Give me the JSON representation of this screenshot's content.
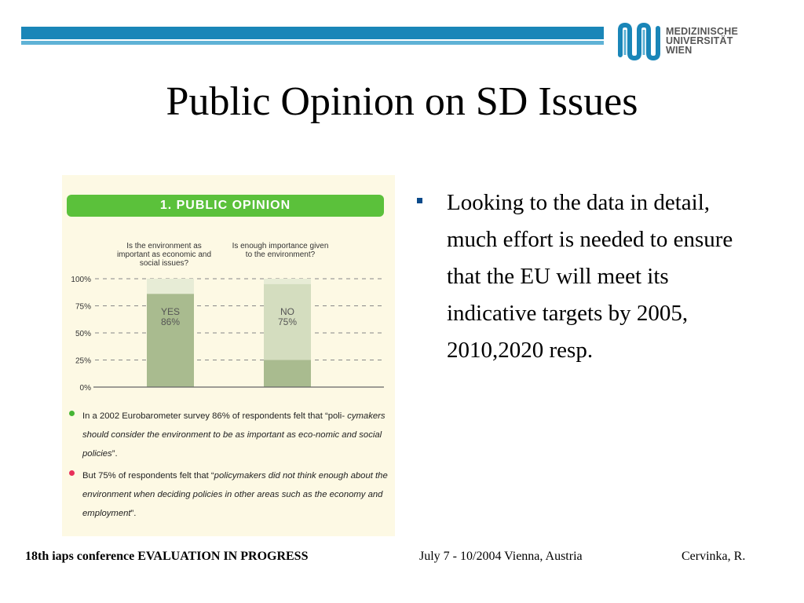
{
  "header": {
    "logo_lines": [
      "MEDIZINISCHE",
      "UNIVERSITÄT",
      "WIEN"
    ],
    "accent_color": "#1a86b8"
  },
  "slide": {
    "title": "Public Opinion on SD Issues"
  },
  "figure": {
    "heading": "1. PUBLIC OPINION",
    "question_1": "Is the environment as important as economic and social issues?",
    "question_2": "Is enough importance given to the environment?",
    "note_1": {
      "before_italic": "In a 2002 Eurobarometer survey 86% of respondents felt that “poli-",
      "italic": "cymakers should consider the environment to be as important as eco-nomic and social policies",
      "after_italic": "”."
    },
    "note_2": {
      "before_italic": "But 75% of respondents felt that “",
      "italic": "policymakers did not think enough about the environment when deciding policies in other areas such as the economy and employment",
      "after_italic": "”."
    },
    "chart_data": {
      "type": "bar",
      "categories": [
        "Is the environment as important as economic and social issues?",
        "Is enough importance given to the environment?"
      ],
      "values": [
        86,
        75
      ],
      "bar_labels": [
        [
          "YES",
          "86%"
        ],
        [
          "NO",
          "75%"
        ]
      ],
      "yticks": [
        "100%",
        "75%",
        "50%",
        "25%",
        "0%"
      ],
      "ylim": [
        0,
        100
      ],
      "grid": "dashed",
      "colors": {
        "primary": "#a9bb8f",
        "secondary": "#d4ddbf",
        "tertiary": "#e7ecd6"
      }
    }
  },
  "bullet": {
    "text": "Looking to the data in detail, much effort is needed to ensure that the EU will meet its indicative targets by 2005, 2010,2020 resp."
  },
  "footer": {
    "left": "18th iaps conference EVALUATION IN PROGRESS",
    "middle": "July 7 - 10/2004 Vienna, Austria",
    "right": "Cervinka, R."
  }
}
